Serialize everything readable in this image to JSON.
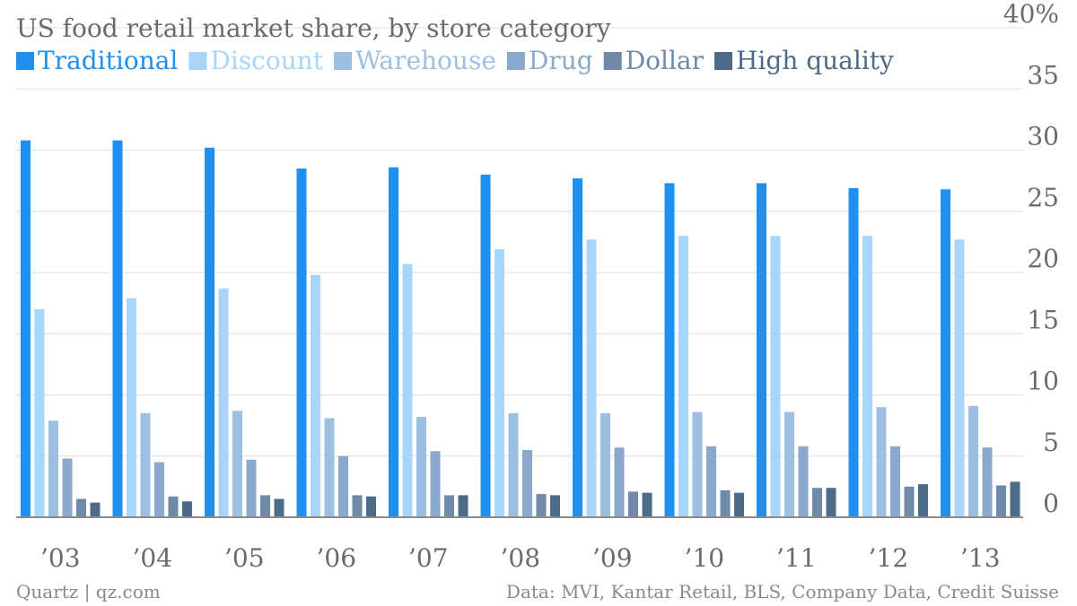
{
  "chart_data": {
    "type": "bar",
    "title": "US food retail market share, by store category",
    "xlabel": "",
    "ylabel": "",
    "ylim": [
      0,
      40
    ],
    "yticks": [
      0,
      5,
      10,
      15,
      20,
      25,
      30,
      35,
      40
    ],
    "ytick_labels": [
      "0",
      "5",
      "10",
      "15",
      "20",
      "25",
      "30",
      "35",
      "40%"
    ],
    "grid": true,
    "legend_position": "top-left",
    "categories": [
      "’03",
      "’04",
      "’05",
      "’06",
      "’07",
      "’08",
      "’09",
      "’10",
      "’11",
      "’12",
      "’13"
    ],
    "series": [
      {
        "name": "Traditional",
        "color": "#1e90ef",
        "values": [
          30.8,
          30.8,
          30.2,
          28.5,
          28.6,
          28.0,
          27.7,
          27.3,
          27.3,
          26.9,
          26.8
        ]
      },
      {
        "name": "Discount",
        "color": "#a9d5fb",
        "values": [
          17.0,
          17.9,
          18.7,
          19.8,
          20.7,
          21.9,
          22.7,
          23.0,
          23.0,
          23.0,
          22.7
        ]
      },
      {
        "name": "Warehouse",
        "color": "#9dc0e2",
        "values": [
          7.9,
          8.5,
          8.7,
          8.1,
          8.2,
          8.5,
          8.5,
          8.6,
          8.6,
          9.0,
          9.1
        ]
      },
      {
        "name": "Drug",
        "color": "#8aa8cc",
        "values": [
          4.8,
          4.5,
          4.7,
          5.0,
          5.4,
          5.5,
          5.7,
          5.8,
          5.8,
          5.8,
          5.7
        ]
      },
      {
        "name": "Dollar",
        "color": "#6f8aa8",
        "values": [
          1.5,
          1.7,
          1.8,
          1.8,
          1.8,
          1.9,
          2.1,
          2.2,
          2.4,
          2.5,
          2.6
        ]
      },
      {
        "name": "High quality",
        "color": "#4d6a88",
        "values": [
          1.2,
          1.3,
          1.5,
          1.7,
          1.8,
          1.8,
          2.0,
          2.0,
          2.4,
          2.7,
          2.9
        ]
      }
    ]
  },
  "footer": {
    "source_left": "Quartz | qz.com",
    "source_right": "Data: MVI, Kantar Retail, BLS, Company Data, Credit Suisse"
  }
}
